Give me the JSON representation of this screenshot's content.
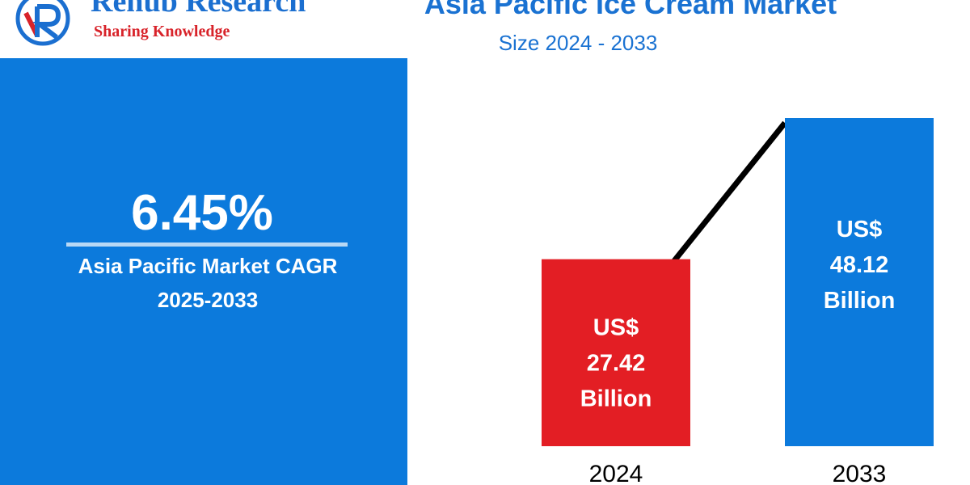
{
  "brand": {
    "name": "Renub Research",
    "tagline": "Sharing Knowledge",
    "colors": {
      "blue": "#1b6fd0",
      "red": "#d8232a"
    }
  },
  "header": {
    "title": "Asia Pacific Ice Cream Market",
    "subtitle": "Size 2024 - 2033"
  },
  "cagr": {
    "value": "6.45%",
    "label": "Asia Pacific Market CAGR",
    "period": "2025-2033",
    "panel_color": "#0c7adc"
  },
  "chart_data": {
    "type": "bar",
    "categories": [
      "2024",
      "2033"
    ],
    "values": [
      27.42,
      48.12
    ],
    "unit": "US$ Billion",
    "bar_colors": [
      "#e31e24",
      "#0c7adc"
    ],
    "value_labels": [
      [
        "US$",
        "27.42",
        "Billion"
      ],
      [
        "US$",
        "48.12",
        "Billion"
      ]
    ],
    "trend_line": true,
    "trend_line_color": "#000000"
  }
}
